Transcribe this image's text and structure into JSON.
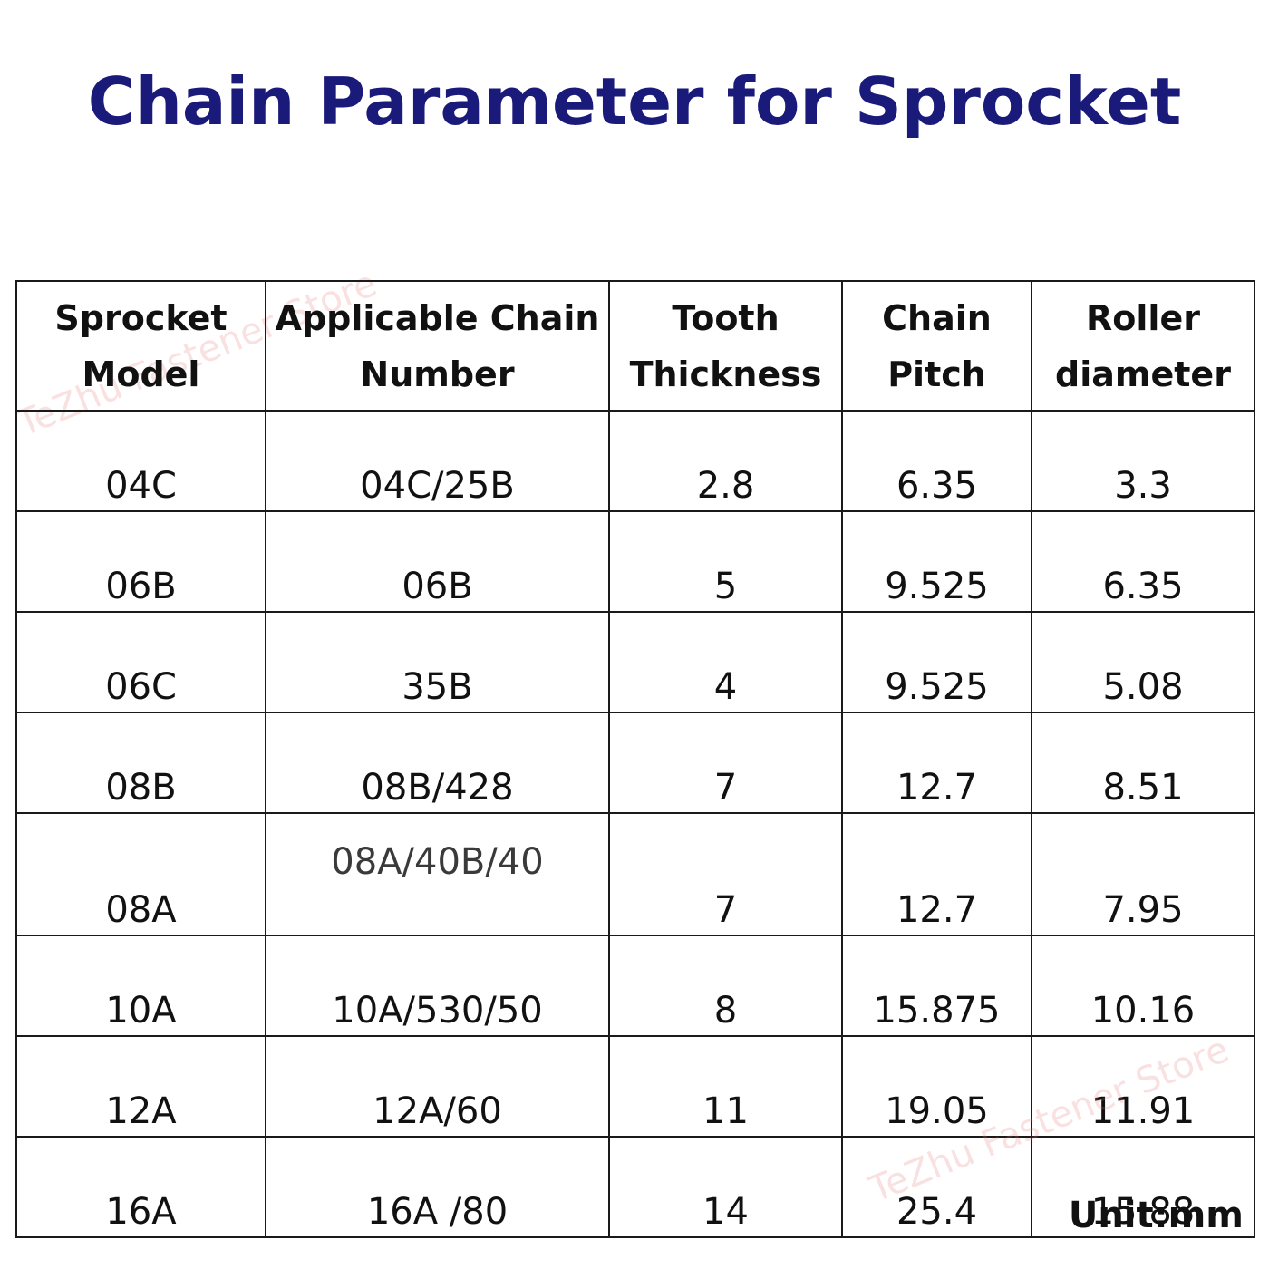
{
  "title": "Chain Parameter for Sprocket",
  "table": {
    "headers": [
      [
        "Sprocket",
        "Model"
      ],
      [
        "Applicable Chain",
        "Number"
      ],
      [
        "Tooth",
        "Thickness"
      ],
      [
        "Chain",
        "Pitch"
      ],
      [
        "Roller",
        "diameter"
      ]
    ],
    "rows": [
      [
        "04C",
        "04C/25B",
        "2.8",
        "6.35",
        "3.3"
      ],
      [
        "06B",
        "06B",
        "5",
        "9.525",
        "6.35"
      ],
      [
        "06C",
        "35B",
        "4",
        "9.525",
        "5.08"
      ],
      [
        "08B",
        "08B/428",
        "7",
        "12.7",
        "8.51"
      ],
      [
        "08A",
        "08A/40B/40",
        "7",
        "12.7",
        "7.95"
      ],
      [
        "10A",
        "10A/530/50",
        "8",
        "15.875",
        "10.16"
      ],
      [
        "12A",
        "12A/60",
        "11",
        "19.05",
        "11.91"
      ],
      [
        "16A",
        "16A /80",
        "14",
        "25.4",
        "15.88"
      ]
    ]
  },
  "unit": "Unit:mm",
  "watermarks": [
    "TeZhu Fastener Store",
    "TeZhu Fastener Store"
  ]
}
